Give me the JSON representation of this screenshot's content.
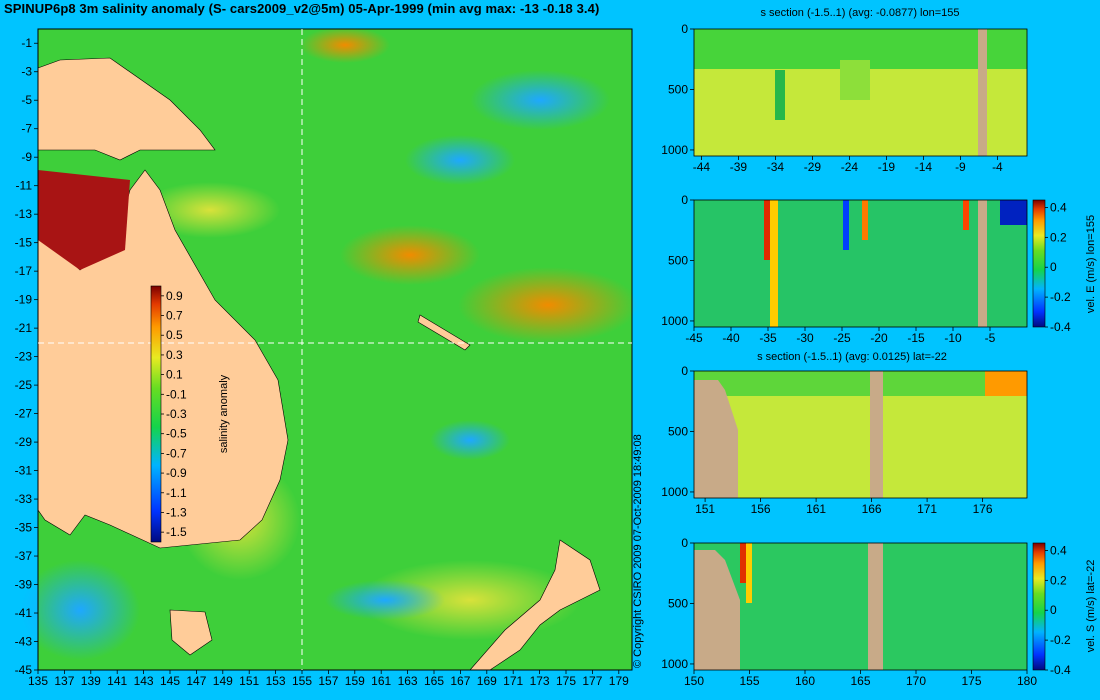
{
  "title": "SPINUP6p8 3m salinity anomaly (S- cars2009_v2@5m) 05-Apr-1999 (min avg max: -13 -0.18 3.4)",
  "copyright": "© Copyright CSIRO 2009   07-Oct-2009 18:49:08",
  "chart_data": [
    {
      "type": "heatmap",
      "id": "map",
      "x_ticks": [
        "135",
        "137",
        "139",
        "141",
        "143",
        "145",
        "147",
        "149",
        "151",
        "153",
        "155",
        "157",
        "159",
        "161",
        "163",
        "165",
        "167",
        "169",
        "171",
        "173",
        "175",
        "177",
        "179"
      ],
      "y_ticks": [
        "-1",
        "-3",
        "-5",
        "-7",
        "-9",
        "-11",
        "-13",
        "-15",
        "-17",
        "-19",
        "-21",
        "-23",
        "-25",
        "-27",
        "-29",
        "-31",
        "-33",
        "-35",
        "-37",
        "-39",
        "-41",
        "-43",
        "-45"
      ],
      "xlim": [
        135,
        180
      ],
      "ylim": [
        -45,
        0
      ],
      "section_lines": {
        "lon": 155,
        "lat": -22
      },
      "colorbar": {
        "label": "salinity anomaly",
        "ticks": [
          "0.9",
          "0.7",
          "0.5",
          "0.3",
          "0.1",
          "-0.1",
          "-0.3",
          "-0.5",
          "-0.7",
          "-0.9",
          "-1.1",
          "-1.3",
          "-1.5"
        ],
        "range": [
          -1.6,
          1.0
        ]
      }
    },
    {
      "type": "heatmap",
      "id": "panel1",
      "title": "s section (-1.5..1) (avg: -0.0877) lon=155",
      "x_ticks": [
        "-44",
        "-39",
        "-34",
        "-29",
        "-24",
        "-19",
        "-14",
        "-9",
        "-4"
      ],
      "y_ticks": [
        "0",
        "500",
        "1000"
      ],
      "xlim": [
        -45,
        0
      ],
      "ylim": [
        0,
        1050
      ]
    },
    {
      "type": "heatmap",
      "id": "panel2",
      "title": "",
      "x_ticks": [
        "-45",
        "-40",
        "-35",
        "-30",
        "-25",
        "-20",
        "-15",
        "-10",
        "-5"
      ],
      "y_ticks": [
        "0",
        "500",
        "1000"
      ],
      "xlim": [
        -45,
        0
      ],
      "ylim": [
        0,
        1050
      ],
      "colorbar": {
        "label": "vel. E (m/s) lon=155",
        "ticks": [
          "0.4",
          "0.2",
          "0",
          "-0.2",
          "-0.4"
        ],
        "range": [
          -0.4,
          0.45
        ]
      }
    },
    {
      "type": "heatmap",
      "id": "panel3",
      "title": "s section (-1.5..1) (avg: 0.0125) lat=-22",
      "x_ticks": [
        "151",
        "156",
        "161",
        "166",
        "171",
        "176"
      ],
      "y_ticks": [
        "0",
        "500",
        "1000"
      ],
      "xlim": [
        150,
        180
      ],
      "ylim": [
        0,
        1050
      ]
    },
    {
      "type": "heatmap",
      "id": "panel4",
      "title": "",
      "x_ticks": [
        "150",
        "155",
        "160",
        "165",
        "170",
        "175",
        "180"
      ],
      "y_ticks": [
        "0",
        "500",
        "1000"
      ],
      "xlim": [
        150,
        180
      ],
      "ylim": [
        0,
        1050
      ],
      "colorbar": {
        "label": "vel. S (m/s) lat=-22",
        "ticks": [
          "0.4",
          "0.2",
          "0",
          "-0.2",
          "-0.4"
        ],
        "range": [
          -0.4,
          0.45
        ]
      }
    }
  ]
}
